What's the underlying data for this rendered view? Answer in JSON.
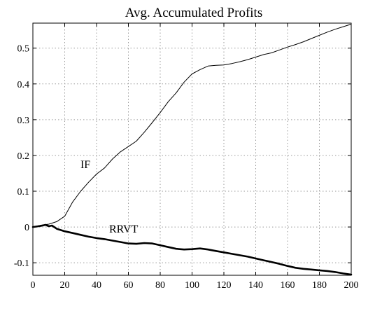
{
  "chart_data": {
    "type": "line",
    "title": "Avg. Accumulated Profits",
    "xlabel": "",
    "ylabel": "",
    "xlim": [
      0,
      200
    ],
    "ylim": [
      -0.135,
      0.57
    ],
    "grid": true,
    "xticks": [
      0,
      20,
      40,
      60,
      80,
      100,
      120,
      140,
      160,
      180,
      200
    ],
    "yticks": [
      -0.1,
      0,
      0.1,
      0.2,
      0.3,
      0.4,
      0.5
    ],
    "series": [
      {
        "name": "IF",
        "line_width": "thin",
        "x": [
          0,
          5,
          10,
          15,
          20,
          25,
          30,
          35,
          40,
          45,
          50,
          55,
          60,
          65,
          70,
          75,
          80,
          85,
          90,
          95,
          100,
          105,
          110,
          115,
          120,
          125,
          130,
          135,
          140,
          145,
          150,
          155,
          160,
          165,
          170,
          175,
          180,
          185,
          190,
          195,
          200
        ],
        "y": [
          0.0,
          0.005,
          0.008,
          0.015,
          0.03,
          0.07,
          0.1,
          0.125,
          0.148,
          0.165,
          0.19,
          0.21,
          0.225,
          0.24,
          0.265,
          0.292,
          0.32,
          0.35,
          0.375,
          0.405,
          0.428,
          0.44,
          0.45,
          0.452,
          0.453,
          0.457,
          0.462,
          0.468,
          0.475,
          0.482,
          0.487,
          0.495,
          0.503,
          0.51,
          0.518,
          0.527,
          0.536,
          0.545,
          0.553,
          0.56,
          0.567
        ]
      },
      {
        "name": "RRVT",
        "line_width": "thick",
        "x": [
          0,
          5,
          8,
          10,
          12,
          15,
          20,
          25,
          30,
          35,
          40,
          45,
          50,
          55,
          60,
          65,
          70,
          75,
          80,
          85,
          90,
          95,
          100,
          105,
          110,
          115,
          120,
          125,
          130,
          135,
          140,
          145,
          150,
          155,
          160,
          165,
          170,
          175,
          180,
          185,
          190,
          195,
          200
        ],
        "y": [
          0.0,
          0.003,
          0.006,
          0.002,
          0.004,
          -0.005,
          -0.012,
          -0.017,
          -0.022,
          -0.027,
          -0.031,
          -0.034,
          -0.038,
          -0.042,
          -0.046,
          -0.047,
          -0.045,
          -0.046,
          -0.051,
          -0.056,
          -0.061,
          -0.063,
          -0.062,
          -0.06,
          -0.063,
          -0.067,
          -0.071,
          -0.075,
          -0.079,
          -0.083,
          -0.088,
          -0.093,
          -0.098,
          -0.103,
          -0.109,
          -0.114,
          -0.117,
          -0.119,
          -0.121,
          -0.123,
          -0.126,
          -0.13,
          -0.133
        ]
      }
    ],
    "annotations": [
      {
        "text": "IF",
        "x": 33,
        "y": 0.165
      },
      {
        "text": "RRVT",
        "x": 57,
        "y": -0.016
      }
    ]
  }
}
